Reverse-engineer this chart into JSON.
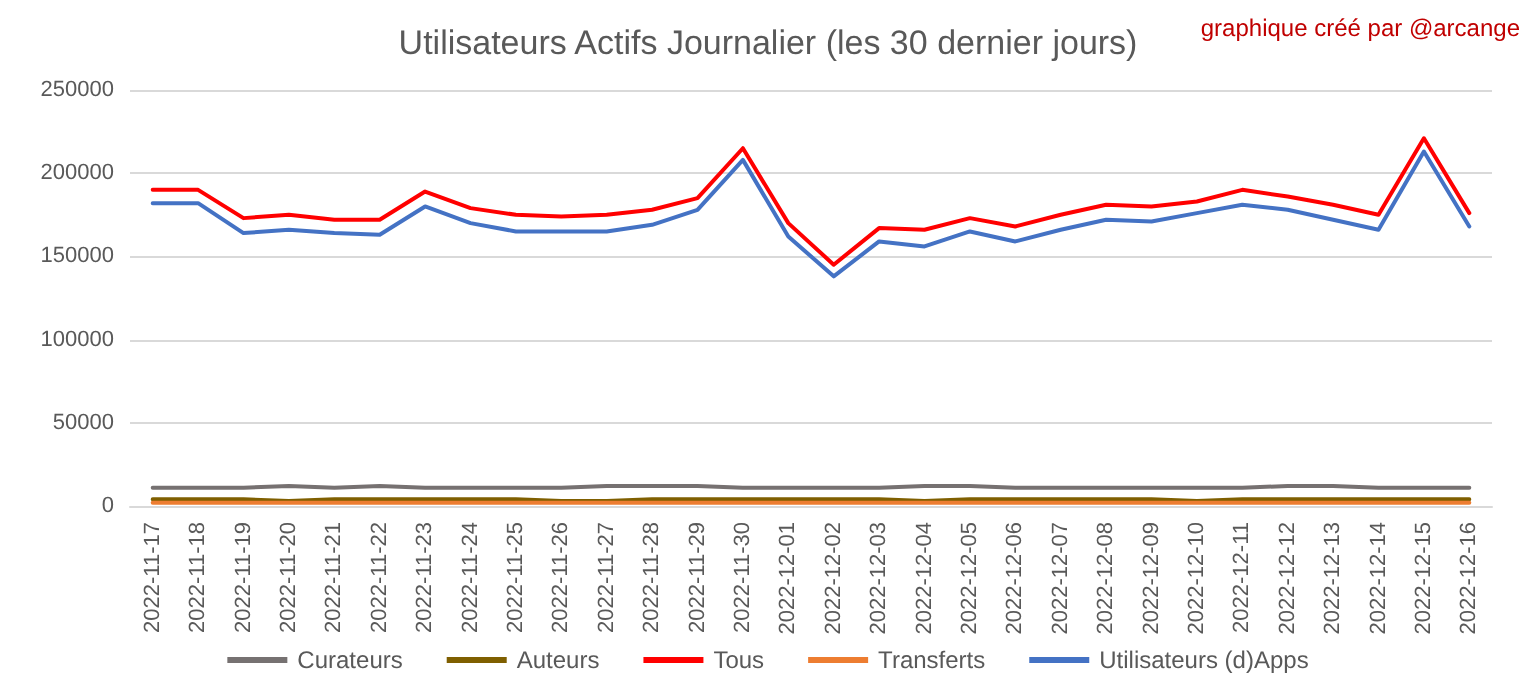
{
  "chart_data": {
    "type": "line",
    "title": "Utilisateurs Actifs Journalier (les 30 dernier jours)",
    "annotations": [
      "graphique créé par @arcange"
    ],
    "categories": [
      "2022-11-17",
      "2022-11-18",
      "2022-11-19",
      "2022-11-20",
      "2022-11-21",
      "2022-11-22",
      "2022-11-23",
      "2022-11-24",
      "2022-11-25",
      "2022-11-26",
      "2022-11-27",
      "2022-11-28",
      "2022-11-29",
      "2022-11-30",
      "2022-12-01",
      "2022-12-02",
      "2022-12-03",
      "2022-12-04",
      "2022-12-05",
      "2022-12-06",
      "2022-12-07",
      "2022-12-08",
      "2022-12-09",
      "2022-12-10",
      "2022-12-11",
      "2022-12-12",
      "2022-12-13",
      "2022-12-14",
      "2022-12-15",
      "2022-12-16"
    ],
    "series": [
      {
        "name": "Curateurs",
        "color": "#767171",
        "values": [
          11000,
          11000,
          11000,
          12000,
          11000,
          12000,
          11000,
          11000,
          11000,
          11000,
          12000,
          12000,
          12000,
          11000,
          11000,
          11000,
          11000,
          12000,
          12000,
          11000,
          11000,
          11000,
          11000,
          11000,
          11000,
          12000,
          12000,
          11000,
          11000,
          11000
        ]
      },
      {
        "name": "Auteurs",
        "color": "#7f5f00",
        "values": [
          4000,
          4000,
          4000,
          3000,
          4000,
          4000,
          4000,
          4000,
          4000,
          3000,
          3000,
          4000,
          4000,
          4000,
          4000,
          4000,
          4000,
          3000,
          4000,
          4000,
          4000,
          4000,
          4000,
          3000,
          4000,
          4000,
          4000,
          4000,
          4000,
          4000
        ]
      },
      {
        "name": "Tous",
        "color": "#ff0000",
        "values": [
          190000,
          190000,
          173000,
          175000,
          172000,
          172000,
          189000,
          179000,
          175000,
          174000,
          175000,
          178000,
          185000,
          215000,
          170000,
          145000,
          167000,
          166000,
          173000,
          168000,
          175000,
          181000,
          180000,
          183000,
          190000,
          186000,
          181000,
          175000,
          221000,
          176000
        ]
      },
      {
        "name": "Transferts",
        "color": "#ed7d31",
        "values": [
          2000,
          2000,
          2000,
          2000,
          2000,
          2000,
          2000,
          2000,
          2000,
          2000,
          2000,
          2000,
          2000,
          2000,
          2000,
          2000,
          2000,
          2000,
          2000,
          2000,
          2000,
          2000,
          2000,
          2000,
          2000,
          2000,
          2000,
          2000,
          2000,
          2000
        ]
      },
      {
        "name": "Utilisateurs (d)Apps",
        "color": "#4472c4",
        "values": [
          182000,
          182000,
          164000,
          166000,
          164000,
          163000,
          180000,
          170000,
          165000,
          165000,
          165000,
          169000,
          178000,
          208000,
          162000,
          138000,
          159000,
          156000,
          165000,
          159000,
          166000,
          172000,
          171000,
          176000,
          181000,
          178000,
          172000,
          166000,
          213000,
          168000
        ]
      }
    ],
    "ylim": [
      0,
      250000
    ],
    "yticks": [
      0,
      50000,
      100000,
      150000,
      200000,
      250000
    ],
    "grid": "y",
    "legend": "bottom",
    "marker": "none",
    "line_style": "solid"
  }
}
